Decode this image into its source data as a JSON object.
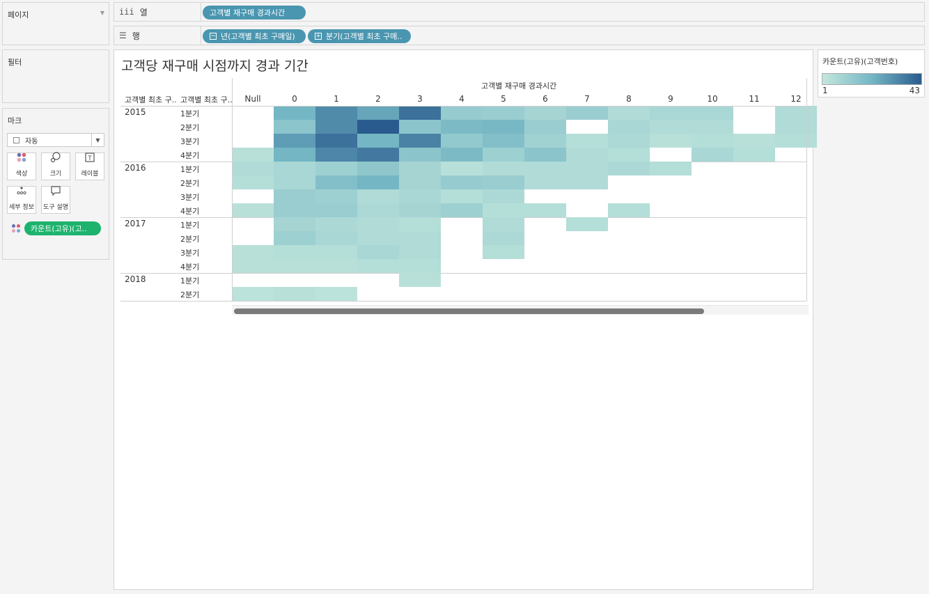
{
  "pages_panel": {
    "title": "페이지"
  },
  "filters_panel": {
    "title": "필터"
  },
  "marks_panel": {
    "title": "마크",
    "mark_type": "자동",
    "buttons": [
      {
        "label": "색상",
        "icon": "color-icon"
      },
      {
        "label": "크기",
        "icon": "size-icon"
      },
      {
        "label": "레이블",
        "icon": "label-icon"
      },
      {
        "label": "세부 정보",
        "icon": "detail-icon"
      },
      {
        "label": "도구 설명",
        "icon": "tooltip-icon"
      }
    ],
    "color_field": "카운트(고유)(고.."
  },
  "columns_shelf": {
    "label": "열",
    "pill": "고객별 재구매 경과시간"
  },
  "rows_shelf": {
    "label": "행",
    "pills": [
      "년(고객별 최초 구매일)",
      "분기(고객별 최초 구매.."
    ]
  },
  "sheet": {
    "title": "고객당 재구매 시점까지 경과 기간",
    "column_field_header": "고객별 재구매 경과시간",
    "row_headers": [
      "고객별 최초 구..",
      "고객별 최초 구.."
    ]
  },
  "legend": {
    "title": "카운트(고유)(고객번호)",
    "min": "1",
    "max": "43"
  },
  "chart_data": {
    "type": "heatmap",
    "title": "고객당 재구매 시점까지 경과 기간",
    "x_label": "고객별 재구매 경과시간",
    "columns": [
      "Null",
      "0",
      "1",
      "2",
      "3",
      "4",
      "5",
      "6",
      "7",
      "8",
      "9",
      "10",
      "11",
      "12"
    ],
    "rows": [
      {
        "year": "2015",
        "quarter": "1분기",
        "values": [
          null,
          22,
          32,
          26,
          38,
          13,
          12,
          9,
          12,
          6,
          8,
          8,
          null,
          6
        ]
      },
      {
        "year": "2015",
        "quarter": "2분기",
        "values": [
          null,
          16,
          32,
          43,
          16,
          20,
          21,
          12,
          null,
          8,
          6,
          6,
          null,
          6
        ]
      },
      {
        "year": "2015",
        "quarter": "3분기",
        "values": [
          null,
          28,
          38,
          22,
          34,
          14,
          18,
          10,
          5,
          7,
          4,
          5,
          4,
          5
        ]
      },
      {
        "year": "2015",
        "quarter": "4분기",
        "values": [
          4,
          22,
          33,
          36,
          16,
          20,
          11,
          16,
          6,
          5,
          null,
          8,
          5,
          null
        ]
      },
      {
        "year": "2016",
        "quarter": "1분기",
        "values": [
          6,
          8,
          11,
          15,
          9,
          4,
          6,
          6,
          6,
          7,
          5,
          null,
          null,
          null
        ]
      },
      {
        "year": "2016",
        "quarter": "2분기",
        "values": [
          5,
          8,
          18,
          22,
          9,
          13,
          12,
          6,
          6,
          null,
          null,
          null,
          null,
          null
        ]
      },
      {
        "year": "2016",
        "quarter": "3분기",
        "values": [
          null,
          12,
          11,
          6,
          8,
          5,
          7,
          null,
          null,
          null,
          null,
          null,
          null,
          null
        ]
      },
      {
        "year": "2016",
        "quarter": "4분기",
        "values": [
          4,
          12,
          12,
          7,
          9,
          11,
          5,
          5,
          null,
          5,
          null,
          null,
          null,
          null
        ]
      },
      {
        "year": "2017",
        "quarter": "1분기",
        "values": [
          null,
          9,
          7,
          6,
          5,
          null,
          6,
          null,
          5,
          null,
          null,
          null,
          null,
          null
        ]
      },
      {
        "year": "2017",
        "quarter": "2분기",
        "values": [
          null,
          11,
          8,
          6,
          6,
          null,
          7,
          null,
          null,
          null,
          null,
          null,
          null,
          null
        ]
      },
      {
        "year": "2017",
        "quarter": "3분기",
        "values": [
          4,
          5,
          5,
          8,
          6,
          null,
          5,
          null,
          null,
          null,
          null,
          null,
          null,
          null
        ]
      },
      {
        "year": "2017",
        "quarter": "4분기",
        "values": [
          4,
          4,
          4,
          5,
          5,
          null,
          null,
          null,
          null,
          null,
          null,
          null,
          null,
          null
        ]
      },
      {
        "year": "2018",
        "quarter": "1분기",
        "values": [
          null,
          null,
          null,
          null,
          4,
          null,
          null,
          null,
          null,
          null,
          null,
          null,
          null,
          null
        ]
      },
      {
        "year": "2018",
        "quarter": "2분기",
        "values": [
          3,
          4,
          3,
          null,
          null,
          null,
          null,
          null,
          null,
          null,
          null,
          null,
          null,
          null
        ]
      }
    ],
    "color_range": [
      1,
      43
    ],
    "color_low": "#c3e7dd",
    "color_mid": "#74b6c4",
    "color_high": "#2a5b8e"
  }
}
